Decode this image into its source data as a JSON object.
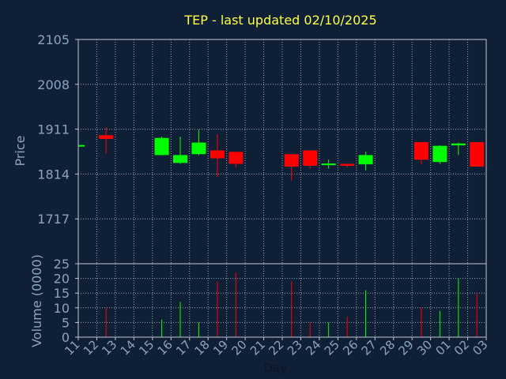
{
  "chart_data": {
    "type": "candlestick",
    "title": "TEP - last updated 02/10/2025",
    "xlabel": "Day",
    "price_panel": {
      "ylabel": "Price",
      "ylim": [
        1620,
        2105
      ],
      "yticks": [
        "2105",
        "2008",
        "1911",
        "1814",
        "1717"
      ],
      "ytick_values": [
        2105,
        2008,
        1911,
        1814,
        1717
      ]
    },
    "volume_panel": {
      "ylabel": "Volume (0000)",
      "ylim": [
        0,
        25
      ],
      "yticks": [
        "25",
        "20",
        "15",
        "10",
        "5",
        "0"
      ],
      "ytick_values": [
        25,
        20,
        15,
        10,
        5,
        0
      ]
    },
    "x_tick_labels": [
      "11",
      "12",
      "13",
      "14",
      "15",
      "16",
      "17",
      "18",
      "19",
      "20",
      "21",
      "22",
      "23",
      "24",
      "25",
      "26",
      "27",
      "28",
      "29",
      "30",
      "01",
      "02",
      "03"
    ],
    "candles": [
      {
        "day": "11",
        "open": 1875,
        "high": 1875,
        "low": 1875,
        "close": 1875,
        "volume": 0
      },
      {
        "day": "12",
        "open": 1898,
        "high": 1915,
        "low": 1858,
        "close": 1890,
        "volume": 10
      },
      {
        "day": "15",
        "open": 1855,
        "high": 1895,
        "low": 1855,
        "close": 1892,
        "volume": 6
      },
      {
        "day": "16",
        "open": 1838,
        "high": 1895,
        "low": 1836,
        "close": 1855,
        "volume": 12
      },
      {
        "day": "17",
        "open": 1857,
        "high": 1910,
        "low": 1855,
        "close": 1882,
        "volume": 5
      },
      {
        "day": "18",
        "open": 1865,
        "high": 1900,
        "low": 1808,
        "close": 1848,
        "volume": 19
      },
      {
        "day": "19",
        "open": 1862,
        "high": 1862,
        "low": 1828,
        "close": 1836,
        "volume": 22
      },
      {
        "day": "22",
        "open": 1857,
        "high": 1857,
        "low": 1800,
        "close": 1830,
        "volume": 19
      },
      {
        "day": "23",
        "open": 1865,
        "high": 1865,
        "low": 1826,
        "close": 1832,
        "volume": 5
      },
      {
        "day": "24",
        "open": 1832,
        "high": 1845,
        "low": 1826,
        "close": 1835,
        "volume": 5
      },
      {
        "day": "25",
        "open": 1836,
        "high": 1836,
        "low": 1828,
        "close": 1832,
        "volume": 7
      },
      {
        "day": "26",
        "open": 1835,
        "high": 1862,
        "low": 1822,
        "close": 1855,
        "volume": 16
      },
      {
        "day": "29",
        "open": 1883,
        "high": 1883,
        "low": 1835,
        "close": 1845,
        "volume": 10
      },
      {
        "day": "30",
        "open": 1840,
        "high": 1876,
        "low": 1836,
        "close": 1875,
        "volume": 9
      },
      {
        "day": "01",
        "open": 1876,
        "high": 1882,
        "low": 1855,
        "close": 1880,
        "volume": 20
      },
      {
        "day": "02",
        "open": 1883,
        "high": 1883,
        "low": 1830,
        "close": 1830,
        "volume": 15
      }
    ],
    "grid": true,
    "colors": {
      "background": "#0f2036",
      "axes": "#bcc8d6",
      "grid": "#9aa8b8",
      "title": "#ffff44",
      "labels": "#8aa4c0",
      "up": "#00ff00",
      "down": "#ff0000"
    }
  }
}
